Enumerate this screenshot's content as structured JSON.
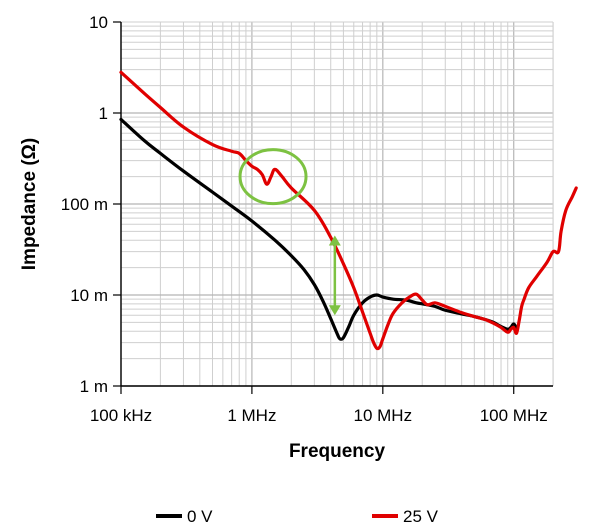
{
  "chart_data": {
    "type": "line",
    "title": "",
    "xlabel": "Frequency",
    "ylabel": "Impedance (Ω)",
    "x_scale": "log",
    "y_scale": "log",
    "xlim": [
      100000,
      300000000
    ],
    "ylim": [
      1,
      10
    ],
    "y_tick_values": [
      0.001,
      0.01,
      0.1,
      1,
      10
    ],
    "y_tick_labels": [
      "1 m",
      "10 m",
      "100 m",
      "1",
      "10"
    ],
    "x_tick_values": [
      100000,
      1000000,
      10000000,
      100000000
    ],
    "x_tick_labels": [
      "100 kHz",
      "1 MHz",
      "10 MHz",
      "100 MHz"
    ],
    "grid": true,
    "legend_position": "bottom",
    "colors": {
      "series_0v": "#000000",
      "series_25v": "#e00000",
      "annotation": "#7dc242"
    },
    "series": [
      {
        "name": "0 V",
        "color": "#000000",
        "x": [
          100000,
          150000,
          200000,
          300000,
          500000,
          700000,
          1000000,
          1500000,
          2000000,
          2500000,
          3000000,
          3500000,
          4000000,
          4500000,
          4700000,
          5000000,
          5500000,
          6000000,
          7000000,
          8000000,
          9000000,
          10000000,
          12000000,
          15000000,
          18000000,
          20000000,
          25000000,
          30000000,
          40000000,
          50000000,
          60000000,
          70000000,
          80000000,
          90000000,
          95000000,
          100000000,
          105000000
        ],
        "y": [
          0.85,
          0.5,
          0.36,
          0.23,
          0.135,
          0.095,
          0.065,
          0.04,
          0.027,
          0.019,
          0.013,
          0.0085,
          0.0055,
          0.0037,
          0.0033,
          0.0034,
          0.0045,
          0.006,
          0.0082,
          0.0095,
          0.01,
          0.0095,
          0.009,
          0.0088,
          0.0082,
          0.008,
          0.0075,
          0.0068,
          0.0062,
          0.0058,
          0.0054,
          0.005,
          0.0045,
          0.0042,
          0.0044,
          0.0048,
          0.0043
        ]
      },
      {
        "name": "25 V",
        "color": "#e00000",
        "x": [
          100000,
          150000,
          200000,
          300000,
          500000,
          700000,
          800000,
          900000,
          1000000,
          1100000,
          1200000,
          1300000,
          1400000,
          1500000,
          1700000,
          2000000,
          3000000,
          4000000,
          5000000,
          6000000,
          7000000,
          8000000,
          8500000,
          9000000,
          9500000,
          10000000,
          11000000,
          12000000,
          14000000,
          16000000,
          18000000,
          20000000,
          22000000,
          25000000,
          30000000,
          40000000,
          50000000,
          60000000,
          70000000,
          80000000,
          90000000,
          95000000,
          100000000,
          105000000,
          110000000,
          115000000,
          120000000,
          130000000,
          150000000,
          180000000,
          200000000,
          220000000,
          230000000,
          250000000,
          280000000,
          300000000
        ],
        "y": [
          2.8,
          1.65,
          1.15,
          0.7,
          0.45,
          0.38,
          0.36,
          0.3,
          0.26,
          0.24,
          0.21,
          0.165,
          0.2,
          0.24,
          0.2,
          0.15,
          0.085,
          0.043,
          0.022,
          0.012,
          0.0065,
          0.0038,
          0.003,
          0.0026,
          0.0027,
          0.0033,
          0.0048,
          0.0063,
          0.0082,
          0.0095,
          0.0102,
          0.0088,
          0.0078,
          0.0082,
          0.0075,
          0.0064,
          0.0058,
          0.0054,
          0.0049,
          0.0044,
          0.0039,
          0.0042,
          0.0044,
          0.0038,
          0.0052,
          0.0075,
          0.009,
          0.012,
          0.016,
          0.023,
          0.03,
          0.03,
          0.05,
          0.085,
          0.12,
          0.15
        ]
      }
    ],
    "annotations": [
      {
        "type": "circle",
        "x": 1450000,
        "y": 0.2
      },
      {
        "type": "double-arrow",
        "x": 4300000,
        "y_from": 0.006,
        "y_to": 0.045
      }
    ]
  }
}
